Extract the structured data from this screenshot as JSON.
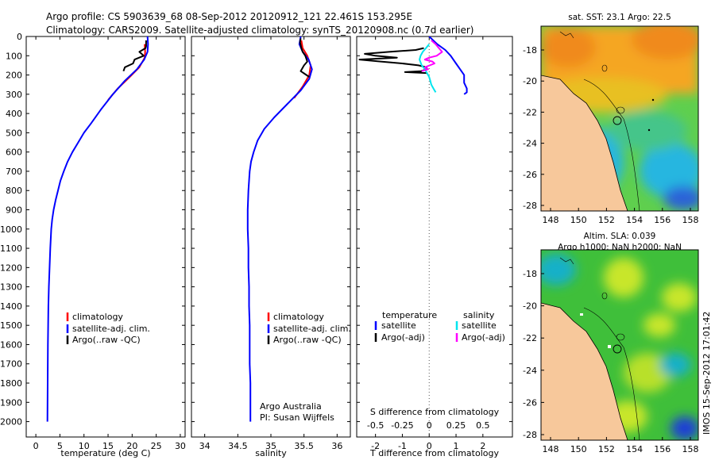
{
  "chart_data": [
    {
      "type": "line",
      "id": "temperature",
      "title_line1": "Argo profile: CS 5903639_68 08-Sep-2012 20120912_121 22.461S 153.295E",
      "title_line2": "Climatology: CARS2009. Satellite-adjusted climatology: synTS_20120908.nc (0.7d earlier)",
      "xlabel": "temperature (deg C)",
      "ylabel": "",
      "xlim": [
        -2,
        31
      ],
      "ylim": [
        2080,
        0
      ],
      "xticks": [
        0,
        5,
        10,
        15,
        20,
        25,
        30
      ],
      "yticks": [
        0,
        100,
        200,
        300,
        400,
        500,
        600,
        700,
        800,
        900,
        1000,
        1100,
        1200,
        1300,
        1400,
        1500,
        1600,
        1700,
        1800,
        1900,
        2000
      ],
      "legend": [
        "climatology",
        "satellite-adj. clim.",
        "Argo(..raw -QC)"
      ],
      "legend_colors": [
        "#ff0000",
        "#0000ff",
        "#000000"
      ],
      "series": [
        {
          "name": "climatology",
          "color": "#ff0000",
          "x": [
            22.6,
            22.7,
            22.6,
            21.5,
            19.5,
            17.0,
            15.0
          ],
          "y": [
            40,
            80,
            110,
            160,
            210,
            270,
            330
          ]
        },
        {
          "name": "satellite-adj. clim.",
          "color": "#0000ff",
          "x": [
            23.2,
            23.3,
            23.2,
            22.5,
            21.0,
            18.5,
            16.0,
            13.5,
            11.5,
            10.0,
            8.8,
            7.6,
            6.6,
            5.8,
            5.1,
            4.6,
            4.1,
            3.7,
            3.4,
            3.2,
            3.0,
            2.85,
            2.7,
            2.6,
            2.55,
            2.5,
            2.45,
            2.4
          ],
          "y": [
            0,
            40,
            80,
            120,
            170,
            230,
            300,
            380,
            450,
            500,
            550,
            600,
            650,
            700,
            750,
            800,
            850,
            900,
            950,
            1000,
            1100,
            1200,
            1300,
            1400,
            1500,
            1600,
            1800,
            2000
          ]
        },
        {
          "name": "Argo(..raw -QC)",
          "color": "#000000",
          "x": [
            22.9,
            22.9,
            22.8,
            21.5,
            22.4,
            20.5,
            20.2,
            18.5,
            18.2
          ],
          "y": [
            20,
            50,
            60,
            80,
            100,
            120,
            140,
            160,
            180
          ]
        }
      ]
    },
    {
      "type": "line",
      "id": "salinity",
      "xlabel": "salinity",
      "ylabel": "",
      "xlim": [
        33.8,
        36.2
      ],
      "ylim": [
        2080,
        0
      ],
      "xticks": [
        34,
        34.5,
        35,
        35.5,
        36
      ],
      "xtick_labels": [
        "34",
        "34.5",
        "35",
        "35.5",
        "36"
      ],
      "legend": [
        "climatology",
        "satellite-adj. clim.",
        "Argo(..raw -QC)"
      ],
      "legend_colors": [
        "#ff0000",
        "#0000ff",
        "#000000"
      ],
      "annotation_line1": "Argo Australia",
      "annotation_line2": "PI: Susan Wijffels",
      "series": [
        {
          "name": "climatology",
          "color": "#ff0000",
          "x": [
            35.46,
            35.48,
            35.55,
            35.6,
            35.58,
            35.48,
            35.35
          ],
          "y": [
            20,
            60,
            100,
            150,
            200,
            260,
            320
          ]
        },
        {
          "name": "satellite-adj. clim.",
          "color": "#0000ff",
          "x": [
            35.45,
            35.43,
            35.48,
            35.57,
            35.62,
            35.58,
            35.45,
            35.25,
            35.05,
            34.9,
            34.8,
            34.74,
            34.7,
            34.68,
            34.67,
            34.66,
            34.65,
            34.65,
            34.66,
            34.66,
            34.67,
            34.67,
            34.68,
            34.68,
            34.68,
            34.69,
            34.69
          ],
          "y": [
            0,
            40,
            80,
            120,
            170,
            220,
            280,
            350,
            420,
            480,
            540,
            600,
            650,
            700,
            750,
            800,
            900,
            1000,
            1100,
            1200,
            1300,
            1400,
            1500,
            1600,
            1700,
            1800,
            2000
          ]
        },
        {
          "name": "Argo(..raw -QC)",
          "color": "#000000",
          "x": [
            35.45,
            35.44,
            35.46,
            35.48,
            35.52,
            35.55,
            35.5,
            35.45,
            35.58
          ],
          "y": [
            10,
            30,
            60,
            80,
            100,
            130,
            150,
            180,
            210
          ]
        }
      ]
    },
    {
      "type": "line",
      "id": "differences",
      "xlim": [
        -2.7,
        3.1
      ],
      "ylim": [
        2080,
        0
      ],
      "top_xticks": [
        -0.5,
        -0.25,
        0,
        0.25,
        0.5
      ],
      "top_xtick_labels": [
        "-0.5",
        "-0.25",
        "0",
        "0.25",
        "0.5"
      ],
      "bottom_xticks": [
        -2,
        -1,
        0,
        1,
        2
      ],
      "bottom_xtick_labels": [
        "-2",
        "-1",
        "0",
        "1",
        "2"
      ],
      "s_label": "S difference from climatology",
      "t_label": "T difference from climatology",
      "legend_temperature_heading": "temperature",
      "legend_salinity_heading": "salinity",
      "legend_temperature": [
        "satellite",
        "Argo(-adj)"
      ],
      "legend_salinity": [
        "satellite",
        "Argo(-adj)"
      ],
      "legend_temperature_colors": [
        "#0000ff",
        "#000000"
      ],
      "legend_salinity_colors": [
        "#00e5ee",
        "#ff00ff"
      ],
      "series": [
        {
          "name": "T satellite",
          "color": "#0000ff",
          "x": [
            0.0,
            0.3,
            0.6,
            0.8,
            1.0,
            1.2,
            1.3,
            1.3,
            1.4,
            1.4,
            1.3
          ],
          "y": [
            0,
            40,
            70,
            100,
            140,
            180,
            200,
            240,
            270,
            290,
            300
          ]
        },
        {
          "name": "T Argo(-adj)",
          "color": "#000000",
          "x": [
            -0.2,
            -0.5,
            -1.5,
            -2.4,
            -2.0,
            -1.2,
            -2.6,
            -1.8,
            -1.0,
            -0.4,
            -0.1,
            -0.1,
            -0.3,
            -0.9,
            -0.1
          ],
          "y": [
            60,
            70,
            80,
            90,
            100,
            110,
            120,
            130,
            140,
            150,
            160,
            170,
            180,
            185,
            190
          ]
        },
        {
          "name": "S satellite",
          "color": "#00e5ee",
          "x": [
            0.0,
            -0.03,
            -0.06,
            -0.08,
            -0.09,
            -0.07,
            -0.04,
            -0.02,
            0.0,
            0.01,
            0.02,
            0.04,
            0.06
          ],
          "y": [
            40,
            60,
            80,
            100,
            120,
            150,
            170,
            190,
            210,
            230,
            250,
            270,
            290
          ]
        },
        {
          "name": "S Argo(-adj)",
          "color": "#ff00ff",
          "x": [
            0.02,
            0.06,
            0.09,
            0.12,
            0.07,
            0.0,
            -0.04,
            0.03,
            0.05,
            -0.04,
            -0.01,
            -0.07
          ],
          "y": [
            20,
            40,
            60,
            80,
            100,
            110,
            120,
            130,
            140,
            160,
            170,
            180
          ]
        }
      ]
    }
  ],
  "maps": {
    "sst_title": "sat. SST: 23.1  Argo: 22.5",
    "sla_title_line1": "Altim. SLA: 0.039",
    "sla_title_line2": "Argo h1000: NaN  h2000: NaN",
    "xticks": [
      "148",
      "150",
      "152",
      "154",
      "156",
      "158"
    ],
    "yticks": [
      "-18",
      "-20",
      "-22",
      "-24",
      "-26",
      "-28"
    ],
    "colors": {
      "land": "#f7c89b",
      "sst_warm": "#f5a623",
      "sst_hot": "#f08a1c",
      "sst_mid": "#5fcf4e",
      "sst_cool": "#27b6e0",
      "sla_base": "#3fbf3a",
      "sla_high": "#c8e62c",
      "sla_low": "#16b0c8",
      "sla_deep": "#1b3fd6"
    }
  },
  "footer_text": "IMOS 15-Sep-2012 17:01:42"
}
